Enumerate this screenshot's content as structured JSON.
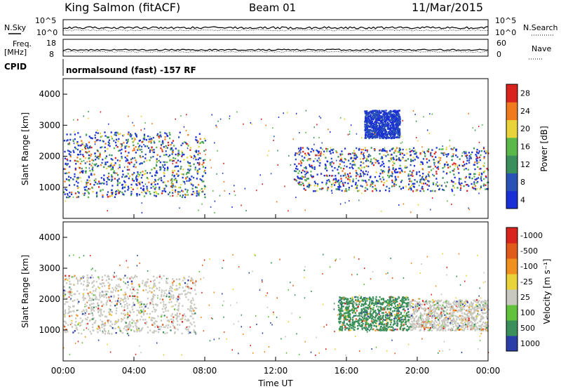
{
  "header": {
    "station": "King Salmon (fitACF)",
    "beam": "Beam 01",
    "date": "11/Mar/2015"
  },
  "sky_panel": {
    "left_label": "N.Sky",
    "right_label": "N.Search",
    "ticks_left": [
      "10^5",
      "10^0"
    ],
    "ticks_right": [
      "10^5",
      "10^0"
    ]
  },
  "freq_panel": {
    "left_label_1": "Freq.",
    "left_label_2": "[MHz]",
    "right_label": "Nave",
    "ticks_left": [
      "18",
      "8"
    ],
    "ticks_right": [
      "60",
      "0"
    ]
  },
  "cpid": {
    "label": "CPID",
    "value": "normalsound (fast) -157 RF"
  },
  "xaxis": {
    "label": "Time UT",
    "ticks": [
      "00:00",
      "04:00",
      "08:00",
      "12:00",
      "16:00",
      "20:00",
      "00:00"
    ]
  },
  "chart_data": [
    {
      "type": "heatmap",
      "title": "",
      "xlabel": "Time UT",
      "ylabel": "Slant Range [km]",
      "x_range_hours": [
        0,
        24
      ],
      "ylim": [
        0,
        4500
      ],
      "y_ticks": [
        1000,
        2000,
        3000,
        4000
      ],
      "colorbar": {
        "label": "Power [dB]",
        "ticks": [
          "4",
          "8",
          "12",
          "16",
          "20",
          "24",
          "28"
        ],
        "colors": [
          "#1a2fd6",
          "#2a52b6",
          "#3a8f5a",
          "#5ab84b",
          "#e8d33a",
          "#f07a1e",
          "#d8231e"
        ]
      },
      "regions": [
        {
          "t": [
            0.0,
            8.0
          ],
          "r": [
            700,
            2800
          ],
          "level": "mixed"
        },
        {
          "t": [
            13.0,
            24.0
          ],
          "r": [
            900,
            2300
          ],
          "level": "mixed"
        },
        {
          "t": [
            17.0,
            19.0
          ],
          "r": [
            2600,
            3500
          ],
          "level": "low"
        }
      ]
    },
    {
      "type": "heatmap",
      "title": "",
      "xlabel": "Time UT",
      "ylabel": "Slant Range [km]",
      "x_range_hours": [
        0,
        24
      ],
      "ylim": [
        0,
        4500
      ],
      "y_ticks": [
        1000,
        2000,
        3000,
        4000
      ],
      "colorbar": {
        "label": "Velocity [m s⁻¹]",
        "ticks": [
          "1000",
          "500",
          "100",
          "25",
          "-25",
          "-100",
          "-500",
          "-1000"
        ],
        "colors": [
          "#2a3ea8",
          "#3a8f5a",
          "#62c23b",
          "#c8c8c0",
          "#e8d33a",
          "#f0901e",
          "#e05a1a",
          "#d8231e"
        ]
      },
      "regions": [
        {
          "t": [
            0.0,
            7.5
          ],
          "r": [
            900,
            2800
          ],
          "level": "ground_scatter"
        },
        {
          "t": [
            15.5,
            19.5
          ],
          "r": [
            1000,
            2100
          ],
          "level": "green"
        },
        {
          "t": [
            19.5,
            24.0
          ],
          "r": [
            1000,
            2000
          ],
          "level": "ground_scatter"
        }
      ]
    }
  ]
}
